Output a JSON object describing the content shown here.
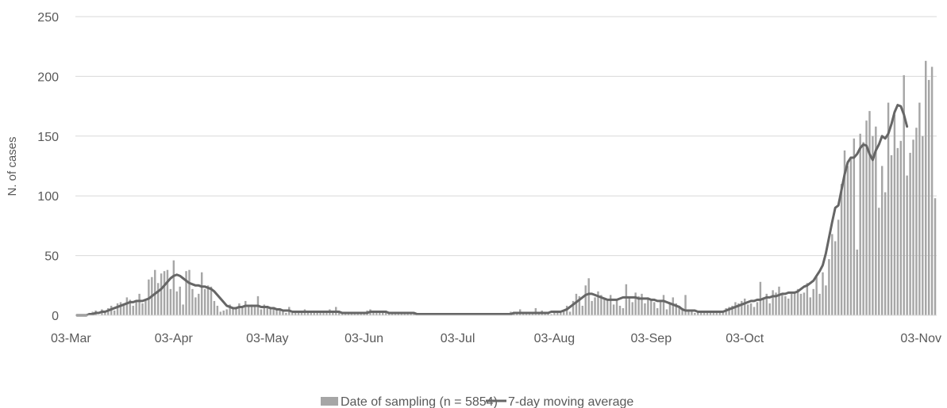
{
  "chart_data": {
    "type": "bar",
    "title": "",
    "xlabel": "",
    "ylabel": "N. of cases",
    "ylim": [
      0,
      250
    ],
    "yticks": [
      "0",
      "50",
      "100",
      "150",
      "200",
      "250"
    ],
    "xtick_labels": [
      "03-Mar",
      "03-Apr",
      "03-May",
      "03-Jun",
      "03-Jul",
      "03-Aug",
      "03-Sep",
      "03-Oct",
      "03-Nov"
    ],
    "grid": "horizontal",
    "legend_position": "bottom",
    "colors": {
      "bars": "#a6a6a6",
      "line": "#666666",
      "grid": "#d9d9d9",
      "text": "#595959"
    },
    "series": [
      {
        "name": "Date of sampling (n = 5854)",
        "type": "bar",
        "start": "2020-03-03",
        "values": [
          1,
          0,
          1,
          1,
          2,
          3,
          4,
          0,
          5,
          3,
          6,
          8,
          4,
          10,
          11,
          9,
          15,
          13,
          8,
          12,
          18,
          10,
          13,
          30,
          32,
          38,
          27,
          35,
          37,
          38,
          22,
          46,
          20,
          24,
          9,
          37,
          38,
          22,
          15,
          18,
          36,
          22,
          25,
          24,
          12,
          8,
          3,
          4,
          5,
          9,
          6,
          7,
          10,
          7,
          12,
          8,
          9,
          7,
          16,
          5,
          9,
          8,
          6,
          7,
          5,
          4,
          3,
          2,
          7,
          2,
          3,
          2,
          3,
          5,
          3,
          2,
          4,
          3,
          3,
          2,
          2,
          5,
          3,
          7,
          2,
          2,
          1,
          2,
          1,
          1,
          3,
          2,
          3,
          4,
          5,
          3,
          2,
          3,
          2,
          4,
          2,
          3,
          2,
          2,
          1,
          2,
          3,
          2,
          1,
          2,
          1,
          1,
          0,
          1,
          1,
          1,
          1,
          0,
          1,
          1,
          1,
          1,
          1,
          1,
          1,
          1,
          1,
          1,
          1,
          1,
          1,
          1,
          1,
          1,
          1,
          1,
          2,
          2,
          2,
          3,
          3,
          2,
          5,
          2,
          2,
          3,
          1,
          6,
          2,
          4,
          3,
          2,
          1,
          4,
          2,
          2,
          4,
          8,
          3,
          12,
          18,
          16,
          8,
          25,
          31,
          12,
          15,
          20,
          17,
          14,
          13,
          17,
          9,
          13,
          8,
          6,
          26,
          15,
          11,
          19,
          16,
          18,
          10,
          15,
          13,
          11,
          6,
          12,
          17,
          5,
          11,
          15,
          10,
          8,
          6,
          17,
          5,
          4,
          2,
          3,
          2,
          3,
          3,
          4,
          2,
          3,
          2,
          4,
          6,
          7,
          8,
          11,
          10,
          12,
          14,
          9,
          10,
          7,
          11,
          28,
          15,
          18,
          10,
          21,
          19,
          24,
          18,
          16,
          14,
          18,
          20,
          22,
          18,
          19,
          27,
          15,
          22,
          32,
          18,
          36,
          25,
          47,
          68,
          62,
          80,
          110,
          138,
          125,
          132,
          148,
          55,
          152,
          145,
          163,
          171,
          150,
          158,
          90,
          125,
          103,
          178,
          134,
          168,
          140,
          146,
          201,
          117,
          136,
          147,
          157,
          178,
          150,
          213,
          197,
          208,
          98
        ]
      },
      {
        "name": "7-day moving average",
        "type": "line",
        "values": [
          0,
          0,
          0,
          0,
          1,
          1,
          2,
          2,
          3,
          3,
          4,
          5,
          6,
          7,
          8,
          9,
          10,
          11,
          11,
          12,
          12,
          12,
          13,
          14,
          16,
          18,
          20,
          22,
          25,
          28,
          31,
          33,
          34,
          33,
          31,
          29,
          27,
          26,
          25,
          25,
          24,
          24,
          23,
          22,
          20,
          17,
          14,
          11,
          8,
          7,
          6,
          6,
          7,
          7,
          8,
          8,
          8,
          8,
          8,
          7,
          7,
          7,
          6,
          6,
          5,
          5,
          4,
          4,
          4,
          3,
          3,
          3,
          3,
          3,
          3,
          3,
          3,
          3,
          3,
          3,
          3,
          3,
          3,
          3,
          3,
          2,
          2,
          2,
          2,
          2,
          2,
          2,
          2,
          2,
          3,
          3,
          3,
          3,
          3,
          3,
          2,
          2,
          2,
          2,
          2,
          2,
          2,
          2,
          2,
          1,
          1,
          1,
          1,
          1,
          1,
          1,
          1,
          1,
          1,
          1,
          1,
          1,
          1,
          1,
          1,
          1,
          1,
          1,
          1,
          1,
          1,
          1,
          1,
          1,
          1,
          1,
          1,
          1,
          1,
          1,
          2,
          2,
          2,
          2,
          2,
          2,
          2,
          2,
          2,
          2,
          2,
          2,
          3,
          3,
          3,
          3,
          4,
          5,
          7,
          9,
          11,
          13,
          15,
          17,
          18,
          18,
          17,
          16,
          15,
          14,
          13,
          13,
          13,
          13,
          14,
          15,
          15,
          15,
          15,
          15,
          14,
          14,
          14,
          14,
          13,
          13,
          12,
          12,
          12,
          11,
          10,
          9,
          8,
          7,
          5,
          4,
          4,
          4,
          4,
          3,
          3,
          3,
          3,
          3,
          3,
          3,
          3,
          3,
          4,
          5,
          6,
          7,
          8,
          9,
          10,
          11,
          12,
          12,
          13,
          13,
          14,
          15,
          15,
          16,
          16,
          17,
          18,
          18,
          19,
          19,
          19,
          20,
          22,
          24,
          25,
          27,
          29,
          33,
          37,
          42,
          52,
          65,
          78,
          90,
          92,
          105,
          118,
          128,
          132,
          132,
          135,
          140,
          143,
          142,
          135,
          130,
          138,
          143,
          150,
          148,
          152,
          160,
          170,
          176,
          175,
          168,
          158
        ]
      }
    ]
  }
}
